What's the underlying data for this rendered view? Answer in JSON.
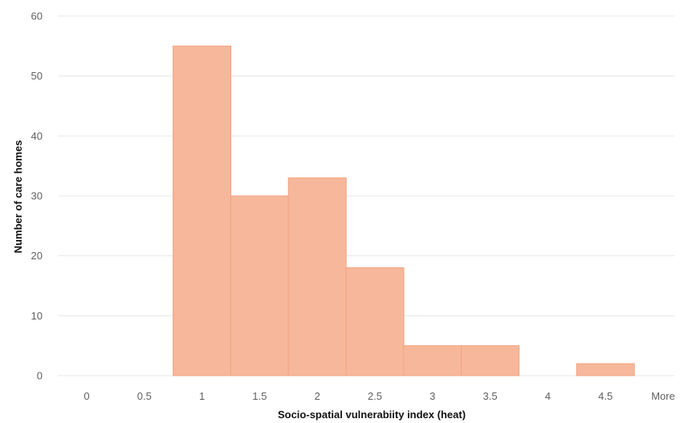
{
  "chart_data": {
    "type": "bar",
    "title": "",
    "xlabel": "Socio-spatial vulnerabiity index (heat)",
    "ylabel": "Number of care homes",
    "categories": [
      "0",
      "0.5",
      "1",
      "1.5",
      "2",
      "2.5",
      "3",
      "3.5",
      "4",
      "4.5",
      "More"
    ],
    "values": [
      0,
      0,
      55,
      30,
      33,
      18,
      5,
      5,
      0,
      2,
      0
    ],
    "ylim": [
      0,
      60
    ],
    "yticks": [
      0,
      10,
      20,
      30,
      40,
      50,
      60
    ],
    "grid": true,
    "legend": "none",
    "colors": {
      "bar_fill": "#f7b79a",
      "bar_stroke": "#f0a582",
      "grid": "#e7e7e7",
      "tick_text": "#5f5f5f",
      "axis_title": "#111111"
    }
  }
}
